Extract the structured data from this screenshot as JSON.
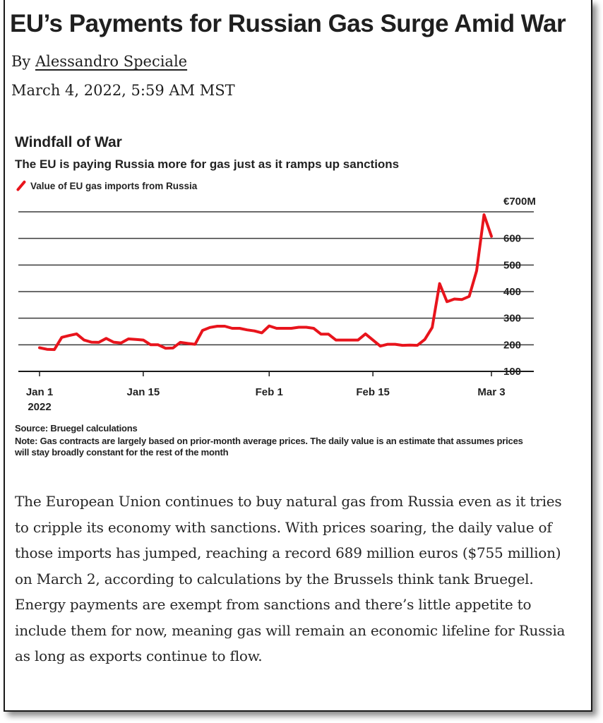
{
  "article": {
    "headline": "EU’s Payments for Russian Gas Surge Amid War",
    "by_prefix": "By ",
    "author": "Alessandro Speciale",
    "date": "March 4, 2022, 5:59 AM MST",
    "body": "The European Union continues to buy natural gas from Russia even as it tries to cripple its economy with sanctions. With prices soaring, the daily value of those imports has jumped, reaching a record 689 million euros ($755 million) on March 2, according to calculations by the Brussels think tank Bruegel. Energy payments are exempt from sanctions and there’s little appetite to include them for now, meaning gas will remain an economic lifeline for Russia as long as exports continue to flow."
  },
  "chart": {
    "source": "Source: Bruegel calculations",
    "note": "Note: Gas contracts are largely based on prior-month average prices. The daily value is an estimate that assumes prices will stay broadly constant for the rest of the month"
  },
  "colors": {
    "series": "#e8141c",
    "grid": "#3a3a3a",
    "text": "#222222"
  },
  "chart_data": {
    "type": "line",
    "title": "Windfall of War",
    "subtitle": "The EU is paying Russia more for gas just as it ramps up sanctions",
    "legend_position": "top-left",
    "grid": true,
    "ylim": [
      100,
      700
    ],
    "y_ticks": [
      {
        "value": 100,
        "label": "100"
      },
      {
        "value": 200,
        "label": "200"
      },
      {
        "value": 300,
        "label": "300"
      },
      {
        "value": 400,
        "label": "400"
      },
      {
        "value": 500,
        "label": "500"
      },
      {
        "value": 600,
        "label": "600"
      },
      {
        "value": 700,
        "label": "€700M"
      }
    ],
    "x_ticks": [
      {
        "date": "2022-01-01",
        "label": "Jan 1",
        "sublabel": "2022"
      },
      {
        "date": "2022-01-15",
        "label": "Jan 15",
        "sublabel": ""
      },
      {
        "date": "2022-02-01",
        "label": "Feb 1",
        "sublabel": ""
      },
      {
        "date": "2022-02-15",
        "label": "Feb 15",
        "sublabel": ""
      },
      {
        "date": "2022-03-03",
        "label": "Mar 3",
        "sublabel": ""
      }
    ],
    "series": [
      {
        "name": "Value of EU gas imports from Russia",
        "points": [
          [
            "2022-01-01",
            189
          ],
          [
            "2022-01-02",
            183
          ],
          [
            "2022-01-03",
            182
          ],
          [
            "2022-01-04",
            228
          ],
          [
            "2022-01-05",
            235
          ],
          [
            "2022-01-06",
            241
          ],
          [
            "2022-01-07",
            218
          ],
          [
            "2022-01-08",
            210
          ],
          [
            "2022-01-09",
            209
          ],
          [
            "2022-01-10",
            224
          ],
          [
            "2022-01-11",
            210
          ],
          [
            "2022-01-12",
            207
          ],
          [
            "2022-01-13",
            222
          ],
          [
            "2022-01-14",
            220
          ],
          [
            "2022-01-15",
            218
          ],
          [
            "2022-01-16",
            200
          ],
          [
            "2022-01-17",
            200
          ],
          [
            "2022-01-18",
            187
          ],
          [
            "2022-01-19",
            188
          ],
          [
            "2022-01-20",
            209
          ],
          [
            "2022-01-21",
            205
          ],
          [
            "2022-01-22",
            202
          ],
          [
            "2022-01-23",
            254
          ],
          [
            "2022-01-24",
            265
          ],
          [
            "2022-01-25",
            270
          ],
          [
            "2022-01-26",
            270
          ],
          [
            "2022-01-27",
            262
          ],
          [
            "2022-01-28",
            262
          ],
          [
            "2022-01-29",
            256
          ],
          [
            "2022-01-30",
            252
          ],
          [
            "2022-01-31",
            245
          ],
          [
            "2022-02-01",
            271
          ],
          [
            "2022-02-02",
            262
          ],
          [
            "2022-02-03",
            262
          ],
          [
            "2022-02-04",
            262
          ],
          [
            "2022-02-05",
            266
          ],
          [
            "2022-02-06",
            266
          ],
          [
            "2022-02-07",
            262
          ],
          [
            "2022-02-08",
            240
          ],
          [
            "2022-02-09",
            240
          ],
          [
            "2022-02-10",
            218
          ],
          [
            "2022-02-11",
            218
          ],
          [
            "2022-02-12",
            218
          ],
          [
            "2022-02-13",
            218
          ],
          [
            "2022-02-14",
            241
          ],
          [
            "2022-02-15",
            218
          ],
          [
            "2022-02-16",
            195
          ],
          [
            "2022-02-17",
            202
          ],
          [
            "2022-02-18",
            202
          ],
          [
            "2022-02-19",
            198
          ],
          [
            "2022-02-20",
            199
          ],
          [
            "2022-02-21",
            198
          ],
          [
            "2022-02-22",
            220
          ],
          [
            "2022-02-23",
            265
          ],
          [
            "2022-02-24",
            430
          ],
          [
            "2022-02-25",
            362
          ],
          [
            "2022-02-26",
            372
          ],
          [
            "2022-02-27",
            370
          ],
          [
            "2022-02-28",
            382
          ],
          [
            "2022-03-01",
            478
          ],
          [
            "2022-03-02",
            689
          ],
          [
            "2022-03-03",
            608
          ]
        ]
      }
    ]
  }
}
